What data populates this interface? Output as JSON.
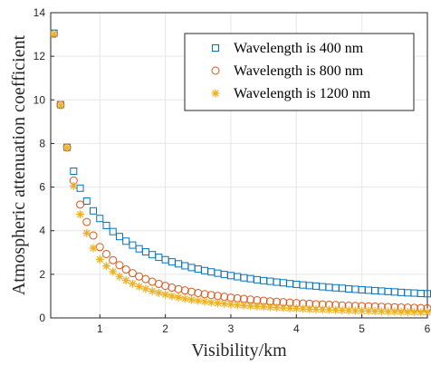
{
  "chart_data": {
    "type": "scatter",
    "title": "",
    "xlabel": "Visibility/km",
    "ylabel": "Atmospheric attenuation coefficient",
    "xlim": [
      0.25,
      6
    ],
    "ylim": [
      0,
      14
    ],
    "xticks": [
      "1",
      "2",
      "3",
      "4",
      "5",
      "6"
    ],
    "yticks": [
      "0",
      "2",
      "4",
      "6",
      "8",
      "10",
      "12",
      "14"
    ],
    "grid": true,
    "legend_position": "top-right",
    "x": [
      0.3,
      0.4,
      0.5,
      0.6,
      0.7,
      0.8,
      0.9,
      1.0,
      1.1,
      1.2,
      1.3,
      1.4,
      1.5,
      1.6,
      1.7,
      1.8,
      1.9,
      2.0,
      2.1,
      2.2,
      2.3,
      2.4,
      2.5,
      2.6,
      2.7,
      2.8,
      2.9,
      3.0,
      3.1,
      3.2,
      3.3,
      3.4,
      3.5,
      3.6,
      3.7,
      3.8,
      3.9,
      4.0,
      4.1,
      4.2,
      4.3,
      4.4,
      4.5,
      4.6,
      4.7,
      4.8,
      4.9,
      5.0,
      5.1,
      5.2,
      5.3,
      5.4,
      5.5,
      5.6,
      5.7,
      5.8,
      5.9,
      6.0
    ],
    "series": [
      {
        "name": "Wavelength is 400 nm",
        "marker": "square",
        "color": "#0072BD",
        "values": [
          13.06,
          9.78,
          7.82,
          6.73,
          5.95,
          5.36,
          4.91,
          4.56,
          4.24,
          3.96,
          3.73,
          3.52,
          3.34,
          3.17,
          3.03,
          2.9,
          2.78,
          2.67,
          2.57,
          2.48,
          2.39,
          2.31,
          2.24,
          2.17,
          2.11,
          2.05,
          1.99,
          1.94,
          1.89,
          1.84,
          1.8,
          1.75,
          1.71,
          1.68,
          1.64,
          1.61,
          1.57,
          1.54,
          1.51,
          1.48,
          1.46,
          1.43,
          1.4,
          1.38,
          1.36,
          1.33,
          1.31,
          1.29,
          1.27,
          1.25,
          1.23,
          1.21,
          1.19,
          1.17,
          1.15,
          1.14,
          1.12,
          1.11
        ]
      },
      {
        "name": "Wavelength is 800 nm",
        "marker": "circle",
        "color": "#D95319",
        "values": [
          13.03,
          9.77,
          7.82,
          6.3,
          5.2,
          4.4,
          3.78,
          3.25,
          2.93,
          2.65,
          2.42,
          2.22,
          2.05,
          1.9,
          1.78,
          1.66,
          1.56,
          1.47,
          1.39,
          1.32,
          1.26,
          1.2,
          1.14,
          1.09,
          1.05,
          1.01,
          0.97,
          0.93,
          0.9,
          0.87,
          0.84,
          0.81,
          0.79,
          0.76,
          0.74,
          0.72,
          0.7,
          0.68,
          0.66,
          0.65,
          0.63,
          0.62,
          0.6,
          0.59,
          0.57,
          0.56,
          0.55,
          0.54,
          0.53,
          0.52,
          0.51,
          0.5,
          0.49,
          0.48,
          0.47,
          0.46,
          0.45,
          0.44
        ]
      },
      {
        "name": "Wavelength is 1200 nm",
        "marker": "asterisk",
        "color": "#EDB120",
        "values": [
          13.02,
          9.76,
          7.81,
          6.05,
          4.75,
          3.89,
          3.2,
          2.68,
          2.38,
          2.12,
          1.9,
          1.72,
          1.57,
          1.44,
          1.33,
          1.23,
          1.15,
          1.07,
          1.0,
          0.94,
          0.88,
          0.83,
          0.79,
          0.75,
          0.71,
          0.68,
          0.65,
          0.62,
          0.59,
          0.57,
          0.55,
          0.53,
          0.51,
          0.49,
          0.47,
          0.46,
          0.44,
          0.43,
          0.42,
          0.4,
          0.39,
          0.38,
          0.37,
          0.36,
          0.35,
          0.34,
          0.33,
          0.32,
          0.32,
          0.31,
          0.3,
          0.29,
          0.29,
          0.28,
          0.27,
          0.27,
          0.26,
          0.26
        ]
      }
    ]
  }
}
